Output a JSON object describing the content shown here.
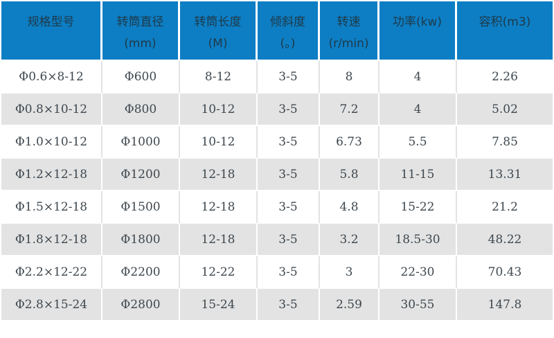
{
  "colors": {
    "header_bg": "#0d7ec4",
    "header_text": "#1e3948",
    "row_alt_bg": "#e3e3e3",
    "row_bg": "#ffffff",
    "cell_text": "#3e474e",
    "grid_line": "#e3e3e3"
  },
  "header": {
    "columns": [
      {
        "line1": "规格型号",
        "line2": ""
      },
      {
        "line1": "转筒直径",
        "line2": "(mm)"
      },
      {
        "line1": "转筒长度",
        "line2": "(M)"
      },
      {
        "line1": "倾斜度",
        "line2": "(。)"
      },
      {
        "line1": "转速",
        "line2": "(r/min)"
      },
      {
        "line1": "功率(kw)",
        "line2": ""
      },
      {
        "line1": "容积(m3)",
        "line2": ""
      }
    ]
  },
  "chart_data": {
    "type": "table",
    "columns": [
      "规格型号",
      "转筒直径 (mm)",
      "转筒长度 (M)",
      "倾斜度 (。)",
      "转速 (r/min)",
      "功率(kw)",
      "容积(m3)"
    ],
    "rows": [
      [
        "Φ0.6×8-12",
        "Φ600",
        "8-12",
        "3-5",
        "8",
        "4",
        "2.26"
      ],
      [
        "Φ0.8×10-12",
        "Φ800",
        "10-12",
        "3-5",
        "7.2",
        "4",
        "5.02"
      ],
      [
        "Φ1.0×10-12",
        "Φ1000",
        "10-12",
        "3-5",
        "6.73",
        "5.5",
        "7.85"
      ],
      [
        "Φ1.2×12-18",
        "Φ1200",
        "12-18",
        "3-5",
        "5.8",
        "11-15",
        "13.31"
      ],
      [
        "Φ1.5×12-18",
        "Φ1500",
        "12-18",
        "3-5",
        "4.8",
        "15-22",
        "21.2"
      ],
      [
        "Φ1.8×12-18",
        "Φ1800",
        "12-18",
        "3-5",
        "3.2",
        "18.5-30",
        "48.22"
      ],
      [
        "Φ2.2×12-22",
        "Φ2200",
        "12-22",
        "3-5",
        "3",
        "22-30",
        "70.43"
      ],
      [
        "Φ2.8×15-24",
        "Φ2800",
        "15-24",
        "3-5",
        "2.59",
        "30-55",
        "147.8"
      ]
    ]
  }
}
